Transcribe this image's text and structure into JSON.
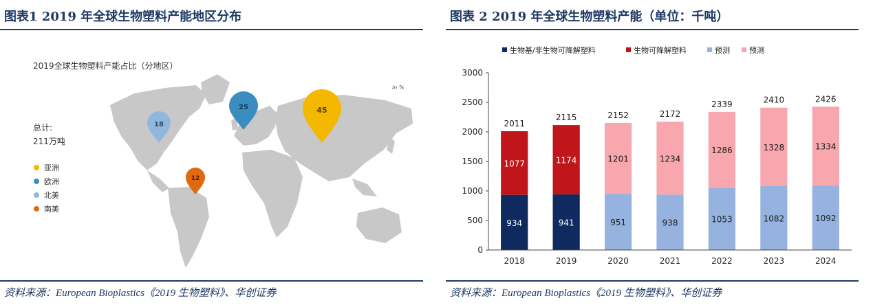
{
  "left": {
    "figure_title": "图表1  2019 年全球生物塑料产能地区分布",
    "chart_title": "2019全球生物塑料产能占比（分地区）",
    "unit": "in %",
    "total_label": "总计:",
    "total_value": "211万吨",
    "source": "资料来源：European Bioplastics《2019 生物塑料》、华创证券",
    "colors": {
      "asia": "#f5b800",
      "europe": "#3a8dbf",
      "north_america": "#8fb8dc",
      "south_america": "#e06a10",
      "land": "#c8c8c8"
    }
  },
  "right": {
    "figure_title": "图表 2   2019 年全球生物塑料产能（单位：千吨）",
    "source": "资料来源：European Bioplastics《2019 生物塑料》、华创证券"
  },
  "chart_data": [
    {
      "type": "pie",
      "title": "2019全球生物塑料产能占比（分地区）",
      "unit": "in %",
      "categories": [
        "亚洲",
        "欧洲",
        "北美",
        "南美"
      ],
      "values": [
        45,
        25,
        18,
        12
      ],
      "colors": [
        "#f5b800",
        "#3a8dbf",
        "#8fb8dc",
        "#e06a10"
      ],
      "legend": "left"
    },
    {
      "type": "bar",
      "stacked": true,
      "categories": [
        "2018",
        "2019",
        "2020",
        "2021",
        "2022",
        "2023",
        "2024"
      ],
      "series": [
        {
          "name": "生物基/非生物可降解塑料",
          "color": "#0e2a5e",
          "values": [
            934,
            941,
            null,
            null,
            null,
            null,
            null
          ]
        },
        {
          "name": "生物可降解塑料",
          "color": "#c0161b",
          "values": [
            1077,
            1174,
            null,
            null,
            null,
            null,
            null
          ]
        },
        {
          "name": "预测",
          "color": "#96b3e0",
          "values": [
            null,
            null,
            951,
            938,
            1053,
            1082,
            1092
          ]
        },
        {
          "name": "预测",
          "color": "#f7a7ad",
          "values": [
            null,
            null,
            1201,
            1234,
            1286,
            1328,
            1334
          ]
        }
      ],
      "totals": [
        2011,
        2115,
        2152,
        2172,
        2339,
        2410,
        2426
      ],
      "ylim": [
        0,
        3000
      ],
      "yticks": [
        0,
        500,
        1000,
        1500,
        2000,
        2500,
        3000
      ],
      "legend": "top"
    }
  ]
}
